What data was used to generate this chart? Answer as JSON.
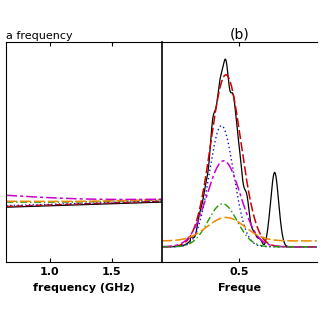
{
  "title_left": "a frequency",
  "title_right": "(b)",
  "xlabel_left": "frequency (GHz)",
  "xlabel_right": "Freque",
  "xlim_left": [
    0.65,
    1.9
  ],
  "xlim_right": [
    0.15,
    0.85
  ],
  "xticks_left": [
    1.0,
    1.5
  ],
  "xticks_right": [
    0.5
  ],
  "ylim_left": [
    -0.3,
    1.0
  ],
  "ylim_right": [
    -0.08,
    1.05
  ],
  "colors": {
    "black": "#000000",
    "red": "#cc0000",
    "blue": "#1111cc",
    "magenta": "#cc00cc",
    "green": "#229900",
    "orange": "#ee8800"
  },
  "background": "#ffffff"
}
